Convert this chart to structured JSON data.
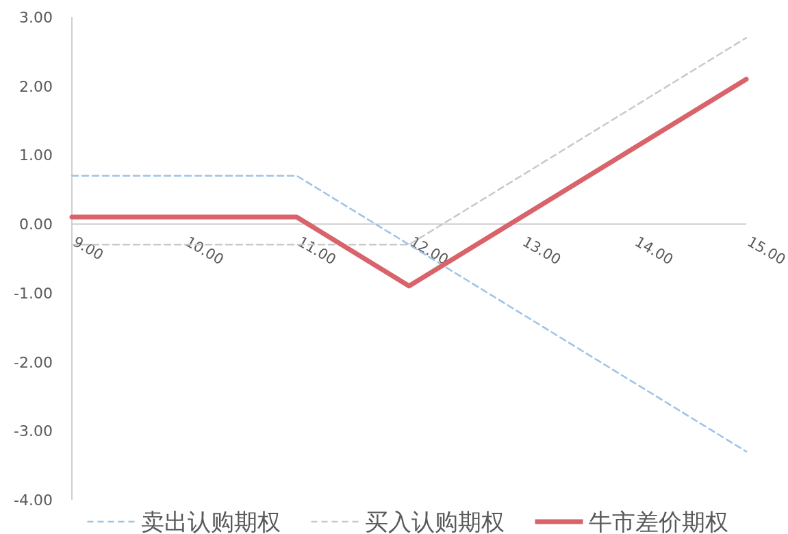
{
  "chart_data": {
    "type": "line",
    "xlim": [
      9,
      15
    ],
    "ylim": [
      -4,
      3
    ],
    "xticks": [
      {
        "value": 9,
        "label": "9.00"
      },
      {
        "value": 10,
        "label": "10.00"
      },
      {
        "value": 11,
        "label": "11.00"
      },
      {
        "value": 12,
        "label": "12.00"
      },
      {
        "value": 13,
        "label": "13.00"
      },
      {
        "value": 14,
        "label": "14.00"
      },
      {
        "value": 15,
        "label": "15.00"
      }
    ],
    "yticks": [
      {
        "value": 3,
        "label": "3.00"
      },
      {
        "value": 2,
        "label": "2.00"
      },
      {
        "value": 1,
        "label": "1.00"
      },
      {
        "value": 0,
        "label": "0.00"
      },
      {
        "value": -1,
        "label": "-1.00"
      },
      {
        "value": -2,
        "label": "-2.00"
      },
      {
        "value": -3,
        "label": "-3.00"
      },
      {
        "value": -4,
        "label": "-4.00"
      }
    ],
    "legend": "bottom",
    "grid": false,
    "series": [
      {
        "name": "卖出认购期权",
        "color": "#9dc3e6",
        "line_style": "dashed",
        "x": [
          9,
          11,
          15
        ],
        "values": [
          0.7,
          0.7,
          -3.3
        ]
      },
      {
        "name": "买入认购期权",
        "color": "#c9c9c9",
        "line_style": "dashed",
        "x": [
          9,
          12,
          15
        ],
        "values": [
          -0.3,
          -0.3,
          2.7
        ]
      },
      {
        "name": "牛市差价期权",
        "color": "#d9636b",
        "line_style": "solid",
        "x": [
          9,
          11,
          12,
          15
        ],
        "values": [
          0.1,
          0.1,
          -0.9,
          2.1
        ]
      }
    ]
  }
}
